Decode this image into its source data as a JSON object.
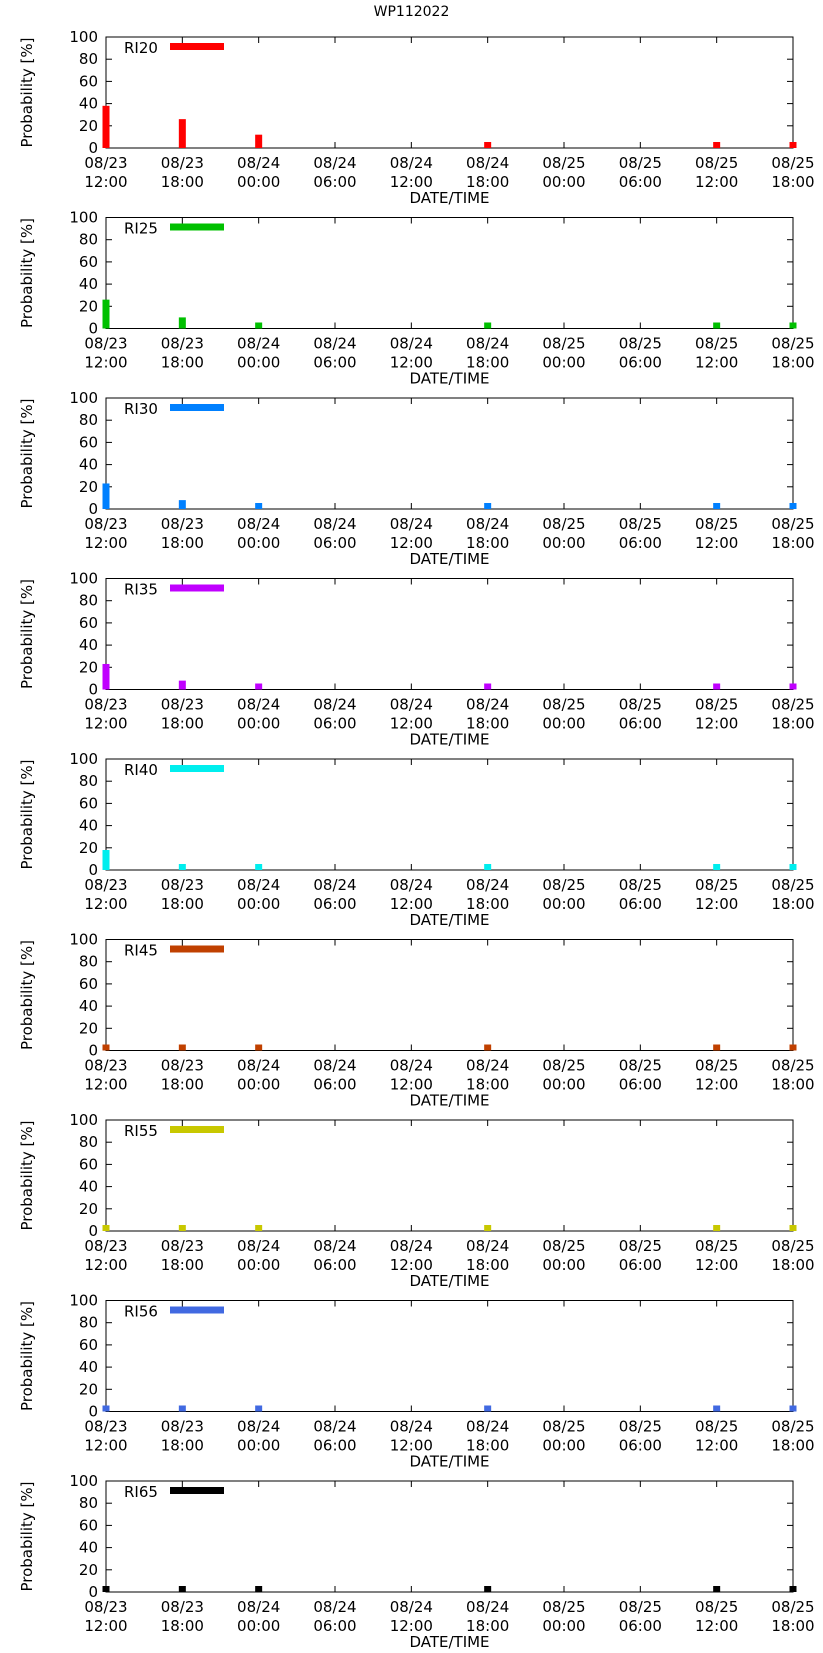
{
  "title": "WP112022",
  "chart_data": {
    "type": "bar",
    "title": "WP112022",
    "xlabel": "DATE/TIME",
    "ylabel": "Probability [%]",
    "ylim": [
      0,
      100
    ],
    "yticks": [
      "0",
      "20",
      "40",
      "60",
      "80",
      "100"
    ],
    "xtick_labels": [
      [
        "08/23",
        "12:00"
      ],
      [
        "08/23",
        "18:00"
      ],
      [
        "08/24",
        "00:00"
      ],
      [
        "08/24",
        "06:00"
      ],
      [
        "08/24",
        "12:00"
      ],
      [
        "08/24",
        "18:00"
      ],
      [
        "08/25",
        "00:00"
      ],
      [
        "08/25",
        "06:00"
      ],
      [
        "08/25",
        "12:00"
      ],
      [
        "08/25",
        "18:00"
      ]
    ],
    "bar_tick_indices": [
      0,
      1,
      2,
      5,
      8,
      9
    ],
    "legend_position": "top-left",
    "panels": [
      {
        "name": "RI20",
        "color": "#ff0000",
        "values": [
          38,
          26,
          12,
          0,
          0,
          0
        ]
      },
      {
        "name": "RI25",
        "color": "#00c000",
        "values": [
          26,
          10,
          3,
          0,
          0,
          0
        ]
      },
      {
        "name": "RI30",
        "color": "#0080ff",
        "values": [
          23,
          8,
          1,
          0,
          0,
          0
        ]
      },
      {
        "name": "RI35",
        "color": "#c000ff",
        "values": [
          23,
          8,
          0,
          0,
          0,
          0
        ]
      },
      {
        "name": "RI40",
        "color": "#00eeee",
        "values": [
          18,
          5,
          0,
          0,
          0,
          0
        ]
      },
      {
        "name": "RI45",
        "color": "#c04000",
        "values": [
          4,
          0,
          0,
          0,
          0,
          0
        ]
      },
      {
        "name": "RI55",
        "color": "#c8c800",
        "values": [
          0,
          0,
          0,
          0,
          0,
          0
        ]
      },
      {
        "name": "RI56",
        "color": "#4169e1",
        "values": [
          0,
          0,
          0,
          0,
          0,
          0
        ]
      },
      {
        "name": "RI65",
        "color": "#000000",
        "values": [
          0,
          0,
          0,
          0,
          0,
          0
        ]
      }
    ]
  }
}
